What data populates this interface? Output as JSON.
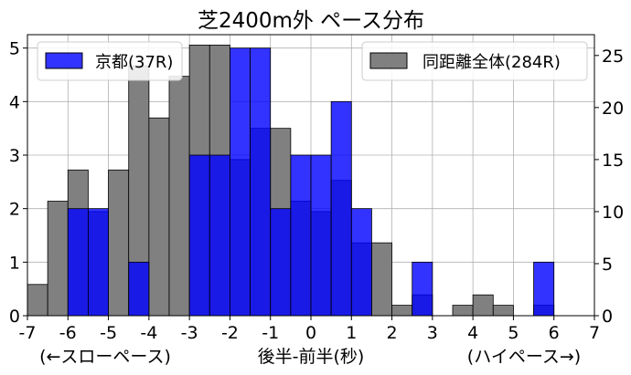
{
  "chart_data": {
    "type": "bar",
    "title": "芝2400m外 ペース分布",
    "xlabel": "後半-前半(秒)",
    "xlabel_left": "(←スローペース)",
    "xlabel_right": "(ハイペース→)",
    "xlim": [
      -7,
      7
    ],
    "xticks": [
      "-7",
      "-6",
      "-5",
      "-4",
      "-3",
      "-2",
      "-1",
      "0",
      "1",
      "2",
      "3",
      "4",
      "5",
      "6",
      "7"
    ],
    "bin_width": 0.5,
    "grid": true,
    "ylim_left": [
      0,
      5.25
    ],
    "yticks_left": [
      "0",
      "1",
      "2",
      "3",
      "4",
      "5"
    ],
    "ylim_right": [
      0,
      27
    ],
    "yticks_right": [
      "0",
      "5",
      "10",
      "15",
      "20",
      "25"
    ],
    "series": [
      {
        "name": "京都(37R)",
        "axis": "left",
        "color": "#0000ff",
        "legend_location": "upper left",
        "bins_start": [
          -6,
          -5.5,
          -4.5,
          -3,
          -2.5,
          -2,
          -1.5,
          -1,
          -0.5,
          0,
          0.5,
          1,
          2.5,
          5.5
        ],
        "values": [
          2,
          2,
          1,
          3,
          3,
          5,
          5,
          2,
          3,
          3,
          4,
          2,
          1,
          1
        ]
      },
      {
        "name": "同距離全体(284R)",
        "axis": "right",
        "color": "#808080",
        "legend_location": "upper right",
        "bins_start": [
          -7,
          -6.5,
          -6,
          -5.5,
          -5,
          -4.5,
          -4,
          -3.5,
          -3,
          -2.5,
          -2,
          -1.5,
          -1,
          -0.5,
          0,
          0.5,
          1,
          1.5,
          2,
          2.5,
          3,
          3.5,
          4,
          4.5,
          5,
          5.5,
          6
        ],
        "values": [
          3,
          11,
          14,
          10,
          14,
          24,
          19,
          23,
          26,
          26,
          15,
          18,
          18,
          11,
          10,
          13,
          7,
          7,
          1,
          2,
          0,
          1,
          2,
          1,
          0,
          1,
          0
        ]
      }
    ]
  }
}
